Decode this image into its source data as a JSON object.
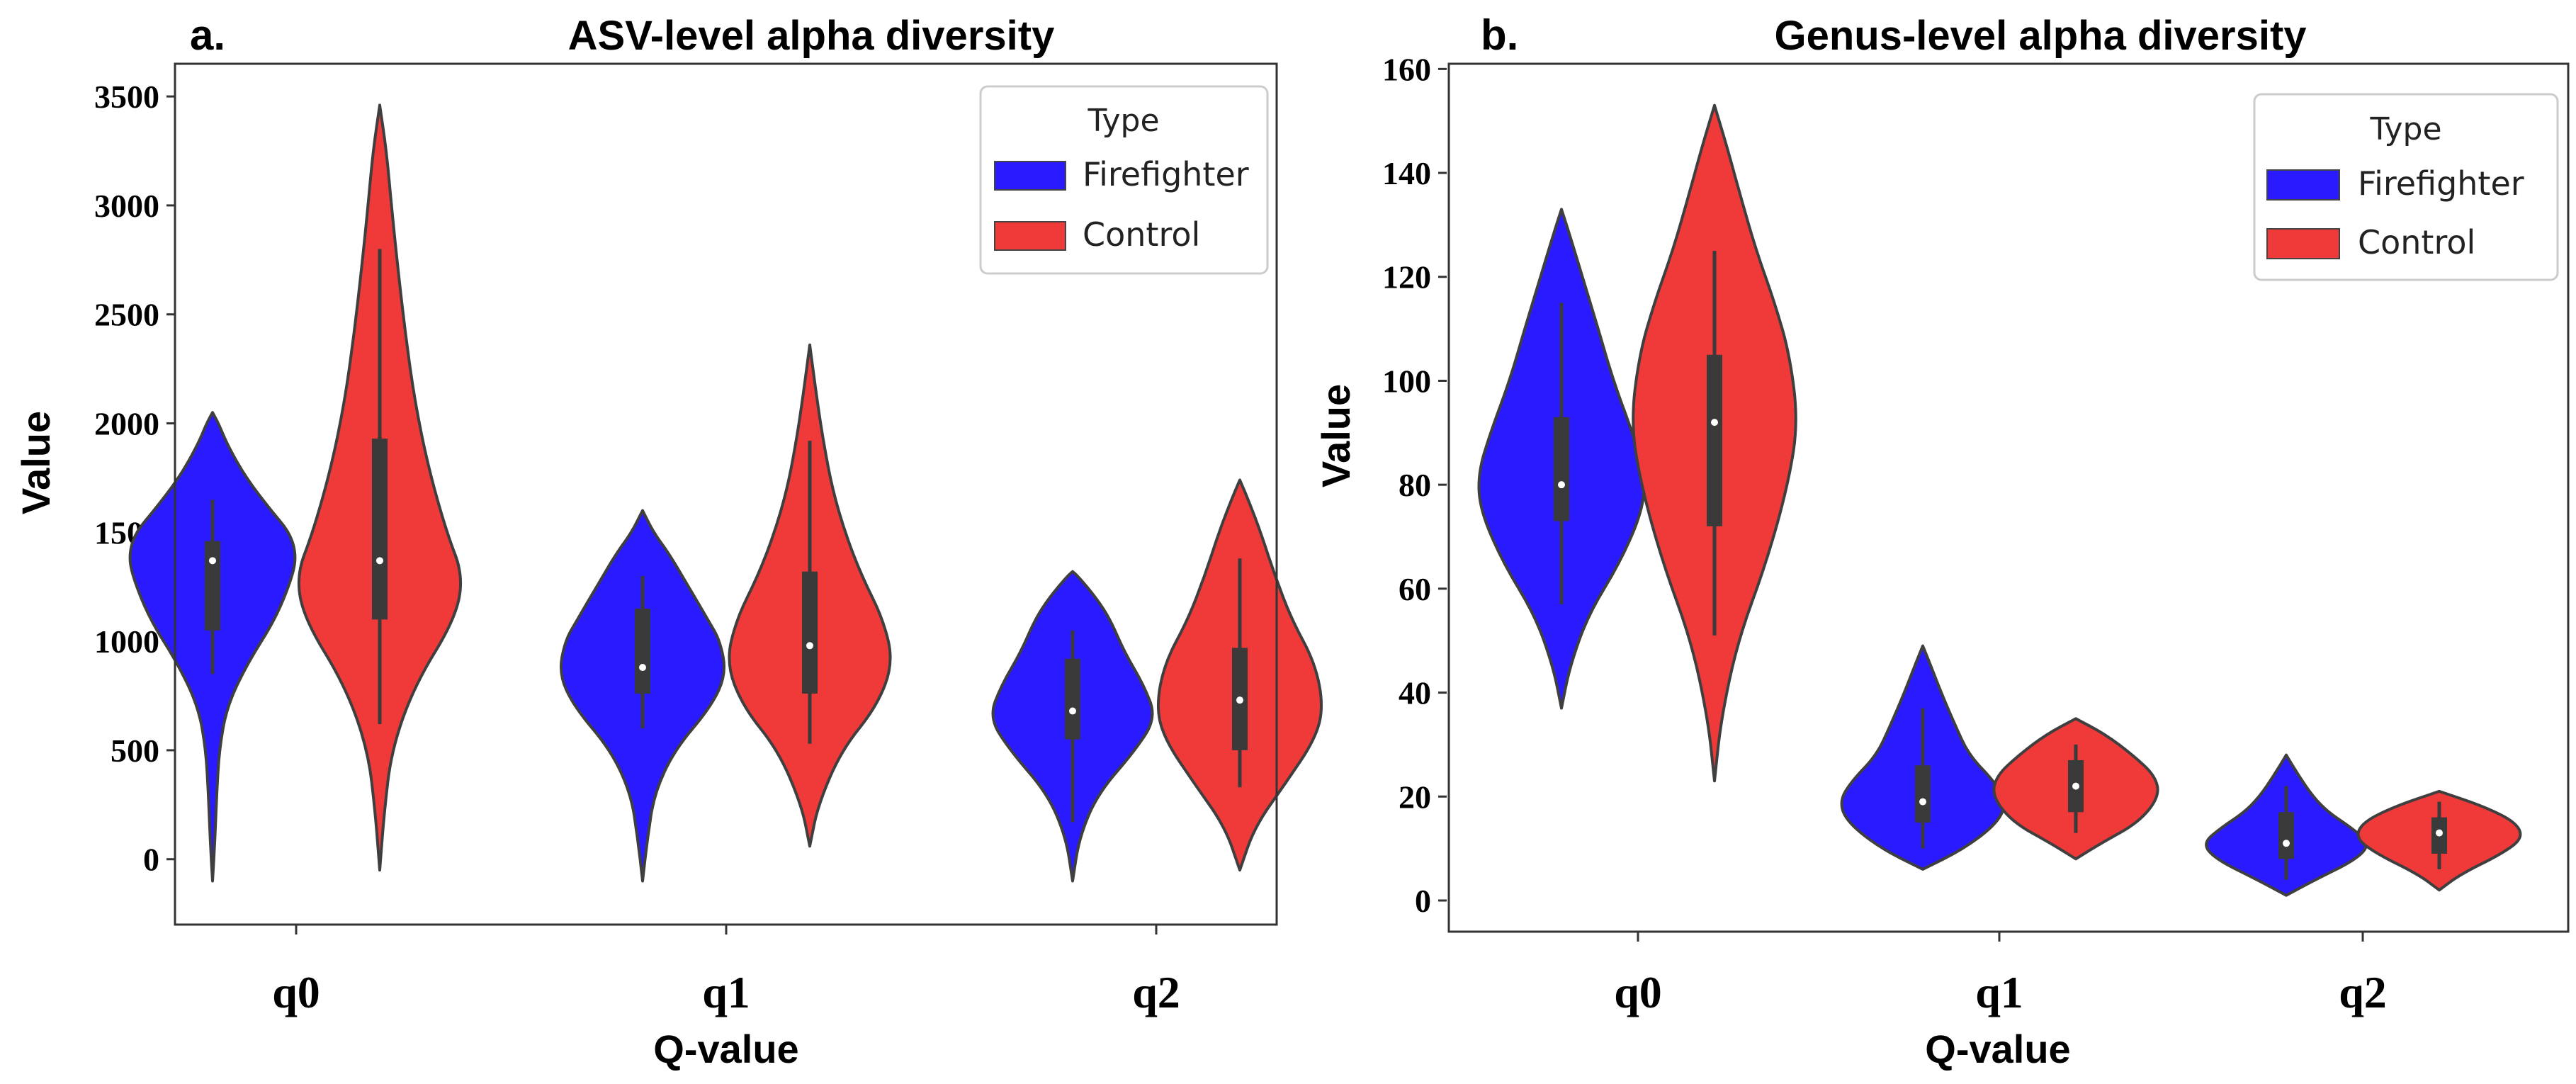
{
  "chart_data": [
    {
      "type": "violin",
      "panel_letter": "a.",
      "title": "ASV-level alpha diversity",
      "xlabel": "Q-value",
      "ylabel": "Value",
      "categories": [
        "q0",
        "q1",
        "q2"
      ],
      "ylim": [
        -300,
        3650
      ],
      "yticks": [
        0,
        500,
        1000,
        1500,
        2000,
        2500,
        3000,
        3500
      ],
      "legend": {
        "title": "Type",
        "position": "top-right",
        "entries": [
          "Firefighter",
          "Control"
        ]
      },
      "series": [
        {
          "name": "Firefighter",
          "color": "#2a1aff",
          "groups": [
            {
              "category": "q0",
              "min": -100,
              "max": 2050,
              "q1": 1050,
              "median": 1370,
              "q3": 1460,
              "whisker_low": 850,
              "whisker_high": 1650,
              "profile": [
                [
                  -100,
                  0.0
                ],
                [
                  100,
                  0.03
                ],
                [
                  300,
                  0.05
                ],
                [
                  500,
                  0.08
                ],
                [
                  700,
                  0.17
                ],
                [
                  900,
                  0.42
                ],
                [
                  1100,
                  0.75
                ],
                [
                  1300,
                  0.96
                ],
                [
                  1400,
                  1.0
                ],
                [
                  1500,
                  0.92
                ],
                [
                  1600,
                  0.7
                ],
                [
                  1750,
                  0.4
                ],
                [
                  1900,
                  0.18
                ],
                [
                  2000,
                  0.07
                ],
                [
                  2050,
                  0.0
                ]
              ]
            },
            {
              "category": "q1",
              "min": -100,
              "max": 1600,
              "q1": 760,
              "median": 880,
              "q3": 1150,
              "whisker_low": 600,
              "whisker_high": 1300,
              "profile": [
                [
                  -100,
                  0.0
                ],
                [
                  100,
                  0.06
                ],
                [
                  300,
                  0.14
                ],
                [
                  500,
                  0.38
                ],
                [
                  700,
                  0.82
                ],
                [
                  850,
                  1.0
                ],
                [
                  1000,
                  0.93
                ],
                [
                  1100,
                  0.78
                ],
                [
                  1250,
                  0.55
                ],
                [
                  1400,
                  0.32
                ],
                [
                  1500,
                  0.13
                ],
                [
                  1600,
                  0.0
                ]
              ]
            },
            {
              "category": "q2",
              "min": -100,
              "max": 1320,
              "q1": 550,
              "median": 680,
              "q3": 920,
              "whisker_low": 170,
              "whisker_high": 1050,
              "profile": [
                [
                  -100,
                  0.0
                ],
                [
                  100,
                  0.08
                ],
                [
                  300,
                  0.3
                ],
                [
                  500,
                  0.75
                ],
                [
                  650,
                  1.0
                ],
                [
                  800,
                  0.85
                ],
                [
                  950,
                  0.62
                ],
                [
                  1100,
                  0.45
                ],
                [
                  1200,
                  0.28
                ],
                [
                  1300,
                  0.06
                ],
                [
                  1320,
                  0.0
                ]
              ]
            }
          ]
        },
        {
          "name": "Control",
          "color": "#f03a3a",
          "groups": [
            {
              "category": "q0",
              "min": -50,
              "max": 3460,
              "q1": 1100,
              "median": 1370,
              "q3": 1930,
              "whisker_low": 620,
              "whisker_high": 2800,
              "profile": [
                [
                  -50,
                  0.0
                ],
                [
                  200,
                  0.05
                ],
                [
                  500,
                  0.14
                ],
                [
                  800,
                  0.42
                ],
                [
                  1100,
                  0.9
                ],
                [
                  1300,
                  1.0
                ],
                [
                  1500,
                  0.8
                ],
                [
                  1800,
                  0.58
                ],
                [
                  2100,
                  0.42
                ],
                [
                  2400,
                  0.31
                ],
                [
                  2700,
                  0.22
                ],
                [
                  3000,
                  0.14
                ],
                [
                  3250,
                  0.08
                ],
                [
                  3460,
                  0.0
                ]
              ]
            },
            {
              "category": "q1",
              "min": 60,
              "max": 2360,
              "q1": 760,
              "median": 980,
              "q3": 1320,
              "whisker_low": 530,
              "whisker_high": 1920,
              "profile": [
                [
                  60,
                  0.0
                ],
                [
                  250,
                  0.1
                ],
                [
                  500,
                  0.38
                ],
                [
                  700,
                  0.8
                ],
                [
                  900,
                  1.0
                ],
                [
                  1100,
                  0.88
                ],
                [
                  1300,
                  0.62
                ],
                [
                  1500,
                  0.42
                ],
                [
                  1700,
                  0.27
                ],
                [
                  1900,
                  0.17
                ],
                [
                  2100,
                  0.09
                ],
                [
                  2360,
                  0.0
                ]
              ]
            },
            {
              "category": "q2",
              "min": -50,
              "max": 1740,
              "q1": 500,
              "median": 730,
              "q3": 970,
              "whisker_low": 330,
              "whisker_high": 1380,
              "profile": [
                [
                  -50,
                  0.0
                ],
                [
                  150,
                  0.18
                ],
                [
                  350,
                  0.55
                ],
                [
                  550,
                  0.9
                ],
                [
                  700,
                  1.0
                ],
                [
                  900,
                  0.9
                ],
                [
                  1100,
                  0.62
                ],
                [
                  1300,
                  0.42
                ],
                [
                  1500,
                  0.25
                ],
                [
                  1650,
                  0.1
                ],
                [
                  1740,
                  0.0
                ]
              ]
            }
          ]
        }
      ]
    },
    {
      "type": "violin",
      "panel_letter": "b.",
      "title": "Genus-level alpha diversity",
      "xlabel": "Q-value",
      "ylabel": "Value",
      "categories": [
        "q0",
        "q1",
        "q2"
      ],
      "ylim": [
        -6,
        161
      ],
      "yticks": [
        0,
        20,
        40,
        60,
        80,
        100,
        120,
        140,
        160
      ],
      "legend": {
        "title": "Type",
        "position": "top-right",
        "entries": [
          "Firefighter",
          "Control"
        ]
      },
      "series": [
        {
          "name": "Firefighter",
          "color": "#2a1aff",
          "groups": [
            {
              "category": "q0",
              "min": 37,
              "max": 133,
              "q1": 73,
              "median": 80,
              "q3": 93,
              "whisker_low": 57,
              "whisker_high": 115,
              "profile": [
                [
                  37,
                  0.0
                ],
                [
                  45,
                  0.1
                ],
                [
                  55,
                  0.32
                ],
                [
                  65,
                  0.7
                ],
                [
                  75,
                  0.97
                ],
                [
                  82,
                  1.0
                ],
                [
                  90,
                  0.85
                ],
                [
                  100,
                  0.62
                ],
                [
                  110,
                  0.44
                ],
                [
                  120,
                  0.25
                ],
                [
                  128,
                  0.1
                ],
                [
                  133,
                  0.0
                ]
              ]
            },
            {
              "category": "q1",
              "min": 6,
              "max": 49,
              "q1": 15,
              "median": 19,
              "q3": 26,
              "whisker_low": 10,
              "whisker_high": 37,
              "profile": [
                [
                  6,
                  0.0
                ],
                [
                  10,
                  0.5
                ],
                [
                  15,
                  0.9
                ],
                [
                  19,
                  1.0
                ],
                [
                  23,
                  0.85
                ],
                [
                  28,
                  0.55
                ],
                [
                  34,
                  0.38
                ],
                [
                  40,
                  0.22
                ],
                [
                  45,
                  0.1
                ],
                [
                  49,
                  0.0
                ]
              ]
            },
            {
              "category": "q2",
              "min": 1,
              "max": 28,
              "q1": 8,
              "median": 11,
              "q3": 17,
              "whisker_low": 4,
              "whisker_high": 22,
              "profile": [
                [
                  1,
                  0.0
                ],
                [
                  4,
                  0.35
                ],
                [
                  8,
                  0.85
                ],
                [
                  11,
                  1.0
                ],
                [
                  14,
                  0.78
                ],
                [
                  17,
                  0.5
                ],
                [
                  20,
                  0.32
                ],
                [
                  24,
                  0.15
                ],
                [
                  28,
                  0.0
                ]
              ]
            }
          ]
        },
        {
          "name": "Control",
          "color": "#f03a3a",
          "groups": [
            {
              "category": "q0",
              "min": 23,
              "max": 153,
              "q1": 72,
              "median": 92,
              "q3": 105,
              "whisker_low": 51,
              "whisker_high": 125,
              "profile": [
                [
                  23,
                  0.0
                ],
                [
                  35,
                  0.08
                ],
                [
                  50,
                  0.28
                ],
                [
                  65,
                  0.62
                ],
                [
                  80,
                  0.88
                ],
                [
                  92,
                  1.0
                ],
                [
                  105,
                  0.9
                ],
                [
                  115,
                  0.72
                ],
                [
                  125,
                  0.5
                ],
                [
                  135,
                  0.32
                ],
                [
                  145,
                  0.15
                ],
                [
                  153,
                  0.0
                ]
              ]
            },
            {
              "category": "q1",
              "min": 8,
              "max": 35,
              "q1": 17,
              "median": 22,
              "q3": 27,
              "whisker_low": 13,
              "whisker_high": 30,
              "profile": [
                [
                  8,
                  0.0
                ],
                [
                  11,
                  0.3
                ],
                [
                  15,
                  0.75
                ],
                [
                  20,
                  1.0
                ],
                [
                  24,
                  0.95
                ],
                [
                  28,
                  0.68
                ],
                [
                  32,
                  0.35
                ],
                [
                  35,
                  0.0
                ]
              ]
            },
            {
              "category": "q2",
              "min": 2,
              "max": 21,
              "q1": 9,
              "median": 13,
              "q3": 16,
              "whisker_low": 6,
              "whisker_high": 19,
              "profile": [
                [
                  2,
                  0.0
                ],
                [
                  5,
                  0.25
                ],
                [
                  9,
                  0.75
                ],
                [
                  12,
                  1.0
                ],
                [
                  15,
                  0.92
                ],
                [
                  18,
                  0.55
                ],
                [
                  21,
                  0.0
                ]
              ]
            }
          ]
        }
      ]
    }
  ]
}
